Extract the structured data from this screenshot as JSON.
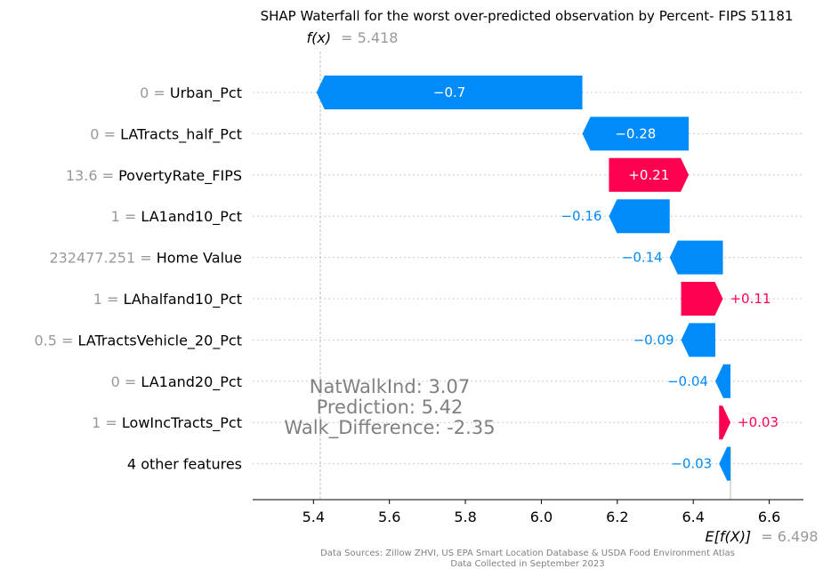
{
  "chart_data": {
    "type": "waterfall",
    "title": "SHAP Waterfall for the worst over-predicted observation by Percent- FIPS 51181",
    "fx": {
      "label": "f(x)",
      "value_text": "= 5.418",
      "value": 5.418
    },
    "efx": {
      "label": "E[f(X)]",
      "value_text": "= 6.498",
      "value": 6.498
    },
    "xlim": [
      5.24,
      6.69
    ],
    "xticks": [
      "5.4",
      "5.6",
      "5.8",
      "6.0",
      "6.2",
      "6.4",
      "6.6"
    ],
    "features": [
      {
        "value": "0 =",
        "name": "Urban_Pct",
        "shap": -0.7,
        "label": "−0.7"
      },
      {
        "value": "0 =",
        "name": "LATracts_half_Pct",
        "shap": -0.28,
        "label": "−0.28"
      },
      {
        "value": "13.6 =",
        "name": "PovertyRate_FIPS",
        "shap": 0.21,
        "label": "+0.21"
      },
      {
        "value": "1 =",
        "name": "LA1and10_Pct",
        "shap": -0.16,
        "label": "−0.16"
      },
      {
        "value": "232477.251 =",
        "name": "Home Value",
        "shap": -0.14,
        "label": "−0.14"
      },
      {
        "value": "1 =",
        "name": "LAhalfand10_Pct",
        "shap": 0.11,
        "label": "+0.11"
      },
      {
        "value": "0.5 =",
        "name": "LATractsVehicle_20_Pct",
        "shap": -0.09,
        "label": "−0.09"
      },
      {
        "value": "0 =",
        "name": "LA1and20_Pct",
        "shap": -0.04,
        "label": "−0.04"
      },
      {
        "value": "1 =",
        "name": "LowIncTracts_Pct",
        "shap": 0.03,
        "label": "+0.03"
      },
      {
        "value": "",
        "name": "4 other features",
        "shap": -0.03,
        "label": "−0.03"
      }
    ],
    "colors": {
      "positive": "#ff0051",
      "negative": "#008bfb"
    }
  },
  "annotation": {
    "line1": "NatWalkInd:  3.07",
    "line2": "Prediction:  5.42",
    "line3": "Walk_Difference:  -2.35"
  },
  "footer": {
    "line1": "Data Sources: Zillow ZHVI, US EPA Smart Location Database & USDA Food Environment Atlas",
    "line2": "Data Collected in September 2023"
  }
}
